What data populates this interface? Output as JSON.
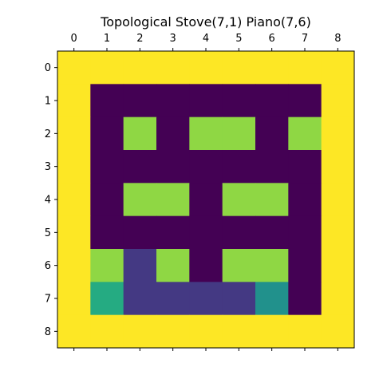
{
  "chart_data": {
    "type": "heatmap",
    "title": "Topological Stove(7,1) Piano(7,6)",
    "xlabel": "",
    "ylabel": "",
    "x_ticks": [
      "0",
      "1",
      "2",
      "3",
      "4",
      "5",
      "6",
      "7",
      "8"
    ],
    "y_ticks": [
      "0",
      "1",
      "2",
      "3",
      "4",
      "5",
      "6",
      "7",
      "8"
    ],
    "x_tick_position": "top",
    "grid": false,
    "palette": {
      "0": "#440154",
      "1": "#443983",
      "2": "#21918c",
      "3": "#25ab82",
      "4": "#8fd744",
      "5": "#fde725"
    },
    "matrix": [
      [
        5,
        5,
        5,
        5,
        5,
        5,
        5,
        5,
        5
      ],
      [
        5,
        0,
        0,
        0,
        0,
        0,
        0,
        0,
        5
      ],
      [
        5,
        0,
        4,
        0,
        4,
        4,
        0,
        4,
        5
      ],
      [
        5,
        0,
        0,
        0,
        0,
        0,
        0,
        0,
        5
      ],
      [
        5,
        0,
        4,
        4,
        0,
        4,
        4,
        0,
        5
      ],
      [
        5,
        0,
        0,
        0,
        0,
        0,
        0,
        0,
        5
      ],
      [
        5,
        4,
        1,
        4,
        0,
        4,
        4,
        0,
        5
      ],
      [
        5,
        3,
        1,
        1,
        1,
        1,
        2,
        0,
        5
      ],
      [
        5,
        5,
        5,
        5,
        5,
        5,
        5,
        5,
        5
      ]
    ]
  }
}
